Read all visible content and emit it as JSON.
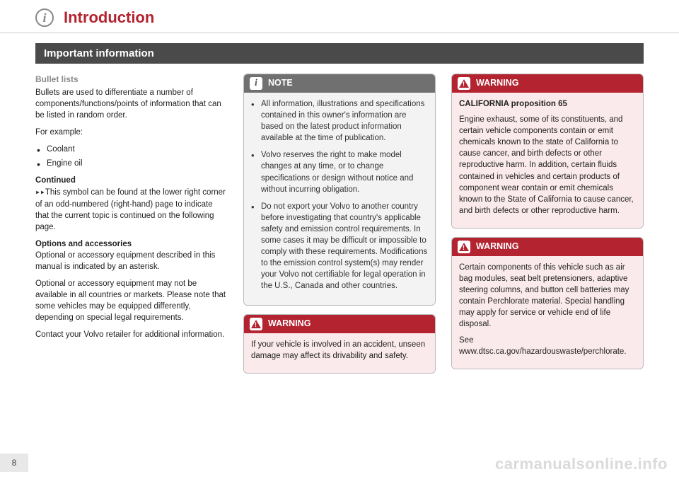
{
  "header": {
    "icon_glyph": "i",
    "chapter_title": "Introduction"
  },
  "section_title": "Important information",
  "col1": {
    "bullet_heading": "Bullet lists",
    "bullet_intro": "Bullets are used to differentiate a number of components/functions/points of information that can be listed in random order.",
    "for_example": "For example:",
    "bullets": [
      "Coolant",
      "Engine oil"
    ],
    "continued_label": "Continued",
    "continued_text": "This symbol can be found at the lower right corner of an odd-numbered (right-hand) page to indicate that the current topic is continued on the following page.",
    "options_heading": "Options and accessories",
    "options_p1": "Optional or accessory equipment described in this manual is indicated by an asterisk.",
    "options_p2": "Optional or accessory equipment may not be available in all countries or markets. Please note that some vehicles may be equipped differently, depending on special legal requirements.",
    "options_p3": "Contact your Volvo retailer for additional information."
  },
  "note": {
    "label": "NOTE",
    "items": [
      "All information, illustrations and specifications contained in this owner's information are based on the latest product information available at the time of publication.",
      "Volvo reserves the right to make model changes at any time, or to change specifications or design without notice and without incurring obligation.",
      "Do not export your Volvo to another country before investigating that country's applicable safety and emission control requirements. In some cases it may be difficult or impossible to comply with these requirements. Modifications to the emission control system(s) may render your Volvo not certifiable for legal operation in the U.S., Canada and other countries."
    ]
  },
  "warning1": {
    "label": "WARNING",
    "text": "If your vehicle is involved in an accident, unseen damage may affect its drivability and safety."
  },
  "warning2": {
    "label": "WARNING",
    "heading": "CALIFORNIA proposition 65",
    "text": "Engine exhaust, some of its constituents, and certain vehicle components contain or emit chemicals known to the state of California to cause cancer, and birth defects or other reproductive harm. In addition, certain fluids contained in vehicles and certain products of component wear contain or emit chemicals known to the State of California to cause cancer, and birth defects or other reproductive harm."
  },
  "warning3": {
    "label": "WARNING",
    "p1": "Certain components of this vehicle such as air bag modules, seat belt pretensioners, adaptive steering columns, and button cell batteries may contain Perchlorate material. Special handling may apply for service or vehicle end of life disposal.",
    "p2": "See www.dtsc.ca.gov/hazardouswaste/perchlorate."
  },
  "page_number": "8",
  "watermark": "carmanualsonline.info"
}
